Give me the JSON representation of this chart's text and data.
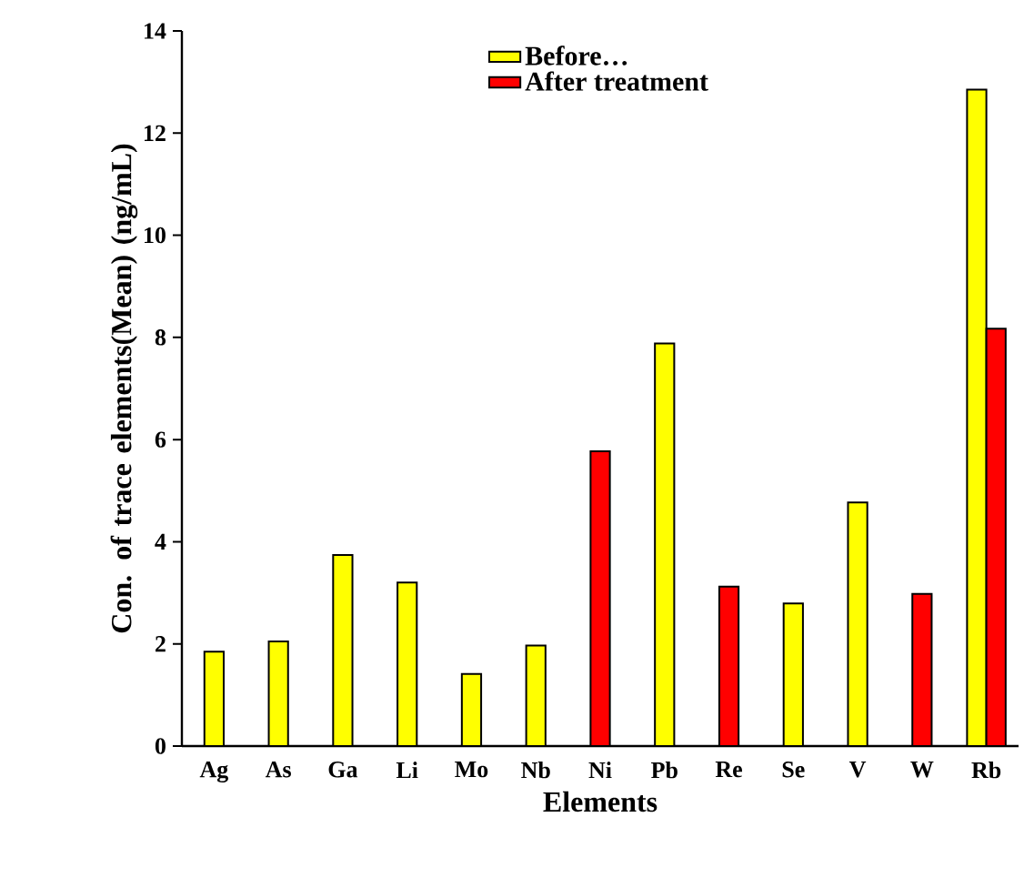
{
  "chart_data": {
    "type": "bar",
    "xlabel": "Elements",
    "ylabel": "Con. of trace elements(Mean) (ng/mL)",
    "categories": [
      "Ag",
      "As",
      "Ga",
      "Li",
      "Mo",
      "Nb",
      "Ni",
      "Pb",
      "Re",
      "Se",
      "V",
      "W",
      "Rb"
    ],
    "series": [
      {
        "name": "Before…",
        "color": "#ffff00",
        "values": [
          1.85,
          2.05,
          3.74,
          3.2,
          1.41,
          1.97,
          null,
          7.88,
          null,
          2.79,
          4.77,
          null,
          12.85
        ]
      },
      {
        "name": "After treatment",
        "color": "#ff0000",
        "values": [
          null,
          null,
          null,
          null,
          null,
          null,
          5.77,
          null,
          3.12,
          null,
          null,
          2.98,
          8.17
        ]
      }
    ],
    "ylim": [
      0,
      14
    ],
    "yticks": [
      0,
      2,
      4,
      6,
      8,
      10,
      12,
      14
    ],
    "grid": false,
    "legend": "top"
  }
}
